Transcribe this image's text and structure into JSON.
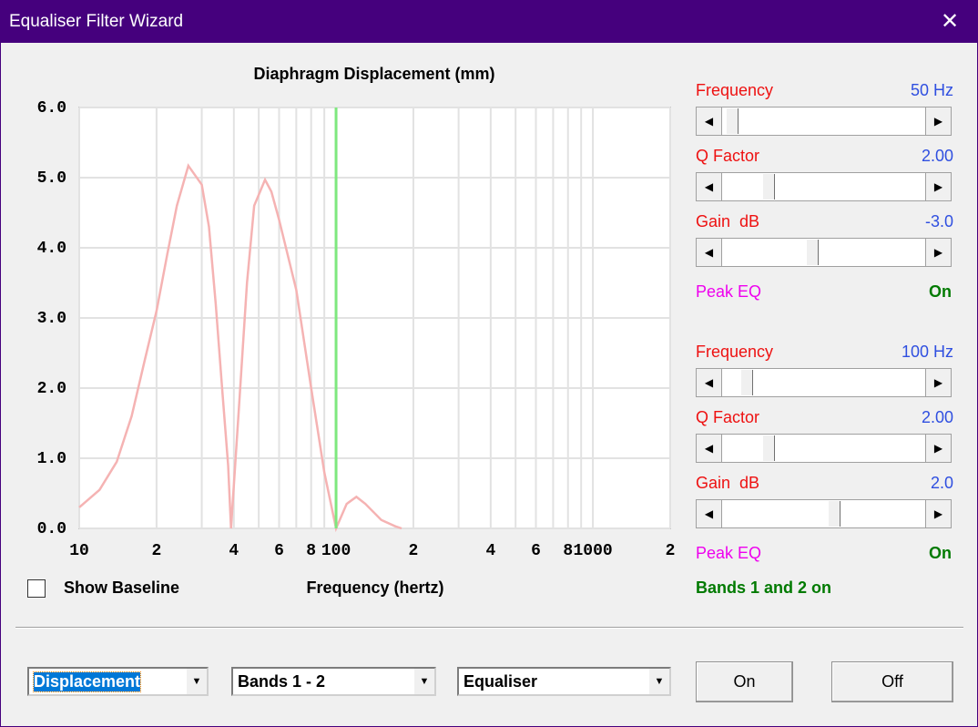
{
  "window": {
    "title": "Equaliser Filter Wizard"
  },
  "chart_data": {
    "type": "line",
    "title": "Diaphragm Displacement (mm)",
    "x_label": "Frequency (hertz)",
    "x_scale": "log",
    "xlim": [
      10,
      2000
    ],
    "ylim": [
      0,
      6
    ],
    "xticks": [
      10,
      {
        "value": 20,
        "label": "2"
      },
      {
        "value": 40,
        "label": "4"
      },
      {
        "value": 60,
        "label": "6"
      },
      {
        "value": 80,
        "label": "8"
      },
      100,
      {
        "value": 200,
        "label": "2"
      },
      {
        "value": 400,
        "label": "4"
      },
      {
        "value": 600,
        "label": "6"
      },
      {
        "value": 800,
        "label": "8"
      },
      1000,
      {
        "value": 2000,
        "label": "2"
      }
    ],
    "x_minor_ticks": [
      30,
      50,
      70,
      90,
      300,
      500,
      700,
      900
    ],
    "yticks": [
      {
        "value": 0,
        "label": "0.0"
      },
      {
        "value": 1,
        "label": "1.0"
      },
      {
        "value": 2,
        "label": "2.0"
      },
      {
        "value": 3,
        "label": "3.0"
      },
      {
        "value": 4,
        "label": "4.0"
      },
      {
        "value": 5,
        "label": "5.0"
      },
      {
        "value": 6,
        "label": "6.0"
      }
    ],
    "grid": true,
    "series": [
      {
        "color": "#f5b3b3",
        "x": [
          10,
          12,
          14,
          16,
          18,
          20,
          22,
          24,
          26.6,
          30,
          32,
          34,
          36,
          38,
          39,
          42,
          45,
          48,
          52.9,
          56,
          60,
          70,
          80,
          90,
          100,
          110,
          120,
          130,
          150,
          170,
          180
        ],
        "values": [
          0.3,
          0.55,
          0.95,
          1.6,
          2.4,
          3.1,
          3.9,
          4.6,
          5.17,
          4.9,
          4.3,
          3.2,
          2.0,
          0.9,
          0,
          1.8,
          3.5,
          4.6,
          4.97,
          4.8,
          4.4,
          3.4,
          2.0,
          0.8,
          0,
          0.35,
          0.45,
          0.35,
          0.12,
          0.03,
          0
        ]
      }
    ],
    "cursor_x": 100,
    "cursor_color": "#7ee87e"
  },
  "bands": [
    {
      "frequency": {
        "label": "Frequency",
        "value": "50 Hz"
      },
      "q": {
        "label": "Q Factor",
        "value": "2.00"
      },
      "gain": {
        "label": "Gain  dB",
        "value": "-3.0"
      },
      "mode": {
        "label": "Peak EQ",
        "state": "On"
      }
    },
    {
      "frequency": {
        "label": "Frequency",
        "value": "100 Hz"
      },
      "q": {
        "label": "Q Factor",
        "value": "2.00"
      },
      "gain": {
        "label": "Gain  dB",
        "value": "2.0"
      },
      "mode": {
        "label": "Peak EQ",
        "state": "On"
      }
    }
  ],
  "status": "Bands 1 and 2 on",
  "baseline_checkbox": "Show Baseline",
  "dropdowns": [
    "Displacement",
    "Bands 1 - 2",
    "Equaliser"
  ],
  "buttons": [
    "On",
    "Off"
  ]
}
